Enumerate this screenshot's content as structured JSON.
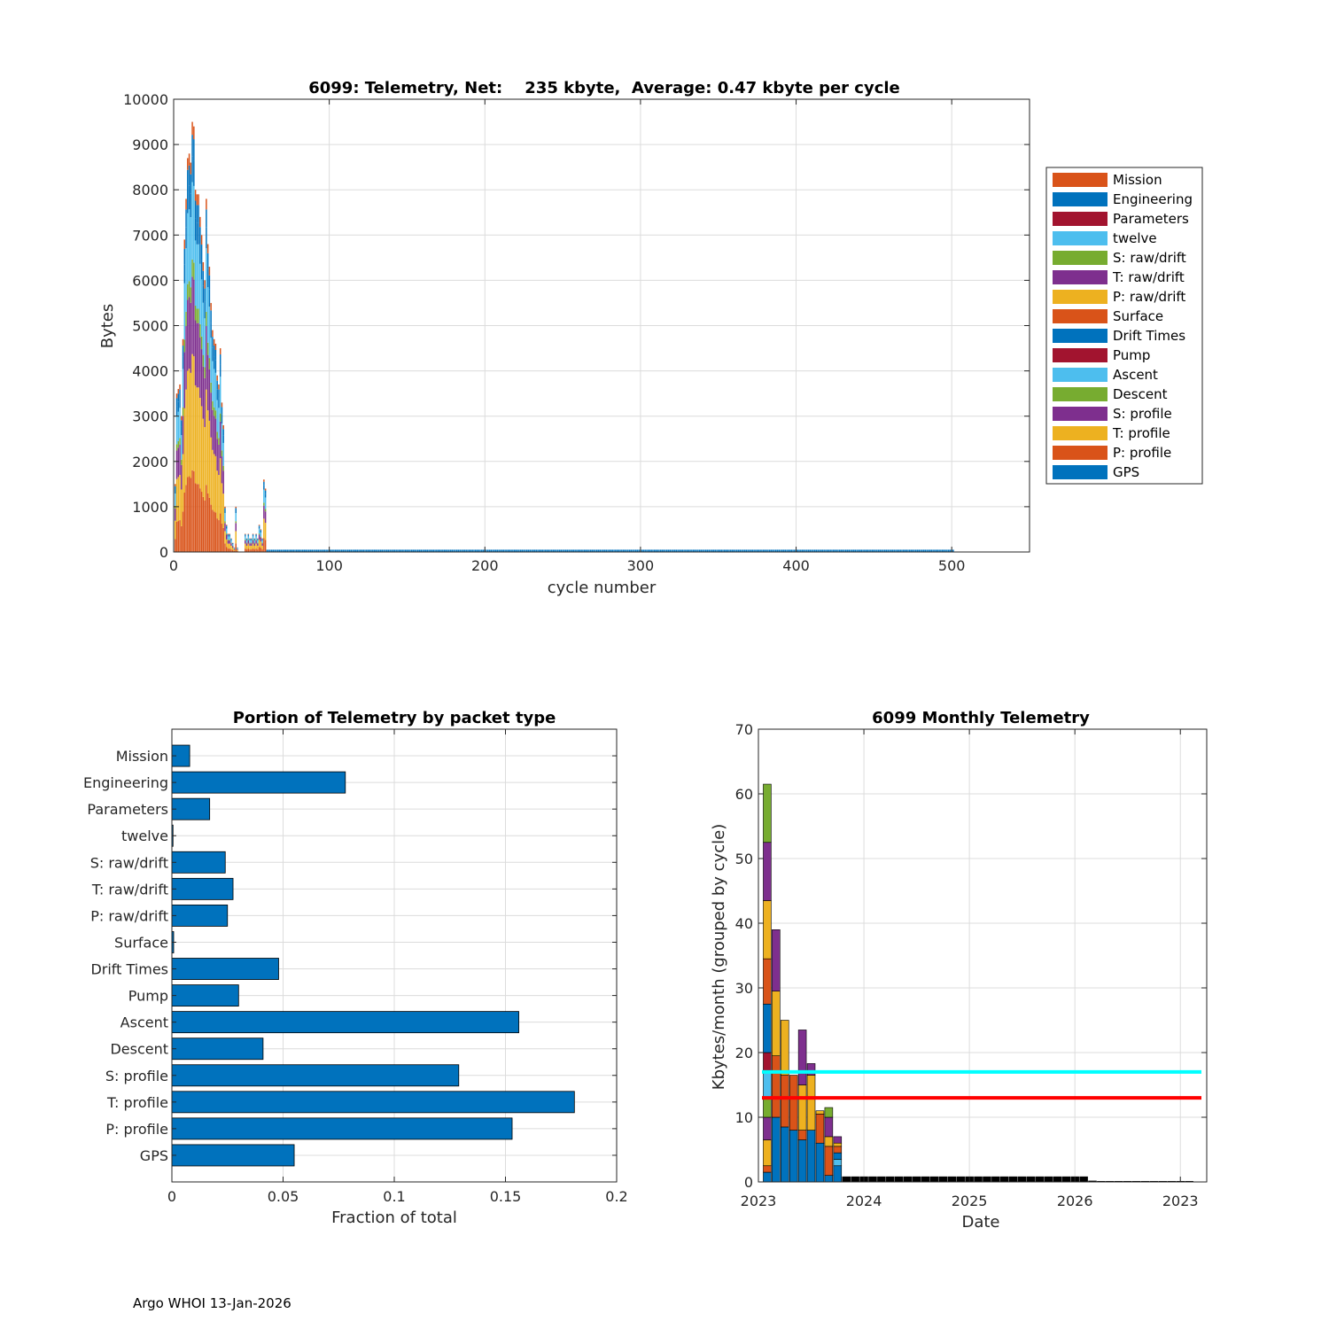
{
  "colors": {
    "Mission": "#D95319",
    "Engineering": "#0072BD",
    "Parameters": "#A2142F",
    "twelve": "#4DBEEE",
    "S: raw/drift": "#77AC30",
    "T: raw/drift": "#7E2F8E",
    "P: raw/drift": "#EDB120",
    "Surface": "#D95319",
    "Drift Times": "#0072BD",
    "Pump": "#A2142F",
    "Ascent": "#4DBEEE",
    "Descent": "#77AC30",
    "S: profile": "#7E2F8E",
    "T: profile": "#EDB120",
    "P: profile": "#D95319",
    "GPS": "#0072BD",
    "avg_line": "#00FFFF",
    "median_line": "#FF0000",
    "bar_blue": "#0072BD",
    "inactive": "#000000"
  },
  "footer": "Argo WHOI 13-Jan-2026",
  "chart_data": [
    {
      "id": "telemetry-per-cycle",
      "type": "bar",
      "stacked": true,
      "title": "6099: Telemetry, Net:    235 kbyte,  Average: 0.47 kbyte per cycle",
      "xlabel": "cycle number",
      "ylabel": "Bytes",
      "xlim": [
        0,
        550
      ],
      "ylim": [
        0,
        10000
      ],
      "xticks": [
        0,
        100,
        200,
        300,
        400,
        500
      ],
      "yticks": [
        0,
        1000,
        2000,
        3000,
        4000,
        5000,
        6000,
        7000,
        8000,
        9000,
        10000
      ],
      "grid": true,
      "legend_position": "outside-right",
      "legend": [
        "Mission",
        "Engineering",
        "Parameters",
        "twelve",
        "S: raw/drift",
        "T: raw/drift",
        "P: raw/drift",
        "Surface",
        "Drift Times",
        "Pump",
        "Ascent",
        "Descent",
        "S: profile",
        "T: profile",
        "P: profile",
        "GPS"
      ],
      "stack_order": [
        "P: profile",
        "T: profile",
        "S: profile",
        "Descent",
        "Ascent",
        "GPS",
        "Engineering",
        "Mission"
      ],
      "cycles": [
        1,
        2,
        3,
        4,
        5,
        6,
        7,
        8,
        9,
        10,
        11,
        12,
        13,
        14,
        15,
        16,
        17,
        18,
        19,
        20,
        21,
        22,
        23,
        24,
        25,
        26,
        27,
        28,
        29,
        30,
        31,
        32,
        33,
        34,
        35,
        36,
        37,
        38,
        39,
        40,
        41,
        42,
        43,
        44,
        45,
        46,
        47,
        48,
        49,
        50,
        51,
        52,
        53,
        54,
        55,
        56,
        57,
        58,
        59
      ],
      "totals": [
        1500,
        3500,
        3600,
        3700,
        3000,
        4700,
        6900,
        7800,
        8700,
        8800,
        8600,
        9500,
        9400,
        8000,
        7900,
        7900,
        7400,
        7000,
        6400,
        6000,
        7800,
        6800,
        6300,
        5500,
        4900,
        4700,
        4600,
        3900,
        3700,
        4500,
        3300,
        2800,
        1000,
        600,
        400,
        400,
        300,
        200,
        100,
        1000,
        100,
        0,
        0,
        0,
        0,
        400,
        300,
        400,
        300,
        300,
        400,
        300,
        400,
        300,
        600,
        500,
        300,
        1600,
        1400
      ],
      "inactive_cycles_range": [
        60,
        501
      ],
      "inactive_value": 50
    },
    {
      "id": "portion-by-packet-type",
      "type": "bar",
      "orientation": "horizontal",
      "title": "Portion of Telemetry by packet type",
      "xlabel": "Fraction of total",
      "ylabel": "",
      "xlim": [
        0,
        0.2
      ],
      "xticks": [
        0,
        0.05,
        0.1,
        0.15,
        0.2
      ],
      "xtick_labels": [
        "0",
        "0.05",
        "0.1",
        "0.15",
        "0.2"
      ],
      "grid": true,
      "categories": [
        "Mission",
        "Engineering",
        "Parameters",
        "twelve",
        "S: raw/drift",
        "T: raw/drift",
        "P: raw/drift",
        "Surface",
        "Drift Times",
        "Pump",
        "Ascent",
        "Descent",
        "S: profile",
        "T: profile",
        "P: profile",
        "GPS"
      ],
      "values": [
        0.008,
        0.078,
        0.017,
        0.0005,
        0.024,
        0.0275,
        0.025,
        0.0008,
        0.048,
        0.03,
        0.156,
        0.041,
        0.129,
        0.181,
        0.153,
        0.055
      ]
    },
    {
      "id": "monthly-telemetry",
      "type": "bar",
      "stacked": true,
      "title": "6099 Monthly Telemetry",
      "xlabel": "Date",
      "ylabel": "Kbytes/month (grouped by cycle)",
      "ylim": [
        0,
        70
      ],
      "yticks": [
        0,
        10,
        20,
        30,
        40,
        50,
        60,
        70
      ],
      "xtick_labels": [
        "2023",
        "2024",
        "2025",
        "2026",
        "2023"
      ],
      "grid": true,
      "average_line": 17,
      "median_line": 13,
      "months": [
        {
          "segments": [
            [
              "GPS",
              1.5
            ],
            [
              "P: profile",
              1
            ],
            [
              "T: profile",
              4
            ],
            [
              "S: profile",
              3.5
            ],
            [
              "Descent",
              3
            ],
            [
              "Ascent",
              4
            ],
            [
              "Pump",
              3
            ],
            [
              "Drift Times",
              7.5
            ],
            [
              "Surface",
              7
            ],
            [
              "P: raw/drift",
              9
            ],
            [
              "T: raw/drift",
              9
            ],
            [
              "S: raw/drift",
              9
            ]
          ]
        },
        {
          "segments": [
            [
              "GPS",
              10
            ],
            [
              "P: profile",
              9.5
            ],
            [
              "T: profile",
              10
            ],
            [
              "S: profile",
              9.5
            ]
          ]
        },
        {
          "segments": [
            [
              "GPS",
              8.5
            ],
            [
              "P: profile",
              8
            ],
            [
              "T: profile",
              8.5
            ]
          ]
        },
        {
          "segments": [
            [
              "GPS",
              8
            ],
            [
              "P: profile",
              8.5
            ]
          ]
        },
        {
          "segments": [
            [
              "GPS",
              6.5
            ],
            [
              "P: profile",
              1.5
            ],
            [
              "T: profile",
              7
            ],
            [
              "S: profile",
              8.5
            ]
          ]
        },
        {
          "segments": [
            [
              "GPS",
              8
            ],
            [
              "T: profile",
              8.5
            ],
            [
              "S: profile",
              1.8
            ]
          ]
        },
        {
          "segments": [
            [
              "GPS",
              6
            ],
            [
              "P: profile",
              4.5
            ],
            [
              "T: profile",
              0.5
            ]
          ]
        },
        {
          "segments": [
            [
              "GPS",
              1
            ],
            [
              "P: profile",
              4.5
            ],
            [
              "T: profile",
              1.5
            ],
            [
              "S: profile",
              3
            ],
            [
              "Descent",
              1.5
            ]
          ]
        },
        {
          "segments": [
            [
              "GPS",
              2.5
            ],
            [
              "Ascent",
              1
            ],
            [
              "Drift Times",
              1
            ],
            [
              "P: profile",
              1
            ],
            [
              "T: profile",
              0.5
            ],
            [
              "S: profile",
              1
            ]
          ]
        },
        {
          "segments": [
            [
              "inactive",
              0.8
            ]
          ]
        },
        {
          "segments": [
            [
              "inactive",
              0.8
            ]
          ]
        },
        {
          "segments": [
            [
              "inactive",
              0.8
            ]
          ]
        },
        {
          "segments": [
            [
              "inactive",
              0.8
            ]
          ]
        },
        {
          "segments": [
            [
              "inactive",
              0.8
            ]
          ]
        },
        {
          "segments": [
            [
              "inactive",
              0.8
            ]
          ]
        },
        {
          "segments": [
            [
              "inactive",
              0.8
            ]
          ]
        },
        {
          "segments": [
            [
              "inactive",
              0.8
            ]
          ]
        },
        {
          "segments": [
            [
              "inactive",
              0.8
            ]
          ]
        },
        {
          "segments": [
            [
              "inactive",
              0.8
            ]
          ]
        },
        {
          "segments": [
            [
              "inactive",
              0.8
            ]
          ]
        },
        {
          "segments": [
            [
              "inactive",
              0.8
            ]
          ]
        },
        {
          "segments": [
            [
              "inactive",
              0.8
            ]
          ]
        },
        {
          "segments": [
            [
              "inactive",
              0.8
            ]
          ]
        },
        {
          "segments": [
            [
              "inactive",
              0.8
            ]
          ]
        },
        {
          "segments": [
            [
              "inactive",
              0.8
            ]
          ]
        },
        {
          "segments": [
            [
              "inactive",
              0.8
            ]
          ]
        },
        {
          "segments": [
            [
              "inactive",
              0.8
            ]
          ]
        },
        {
          "segments": [
            [
              "inactive",
              0.8
            ]
          ]
        },
        {
          "segments": [
            [
              "inactive",
              0.8
            ]
          ]
        },
        {
          "segments": [
            [
              "inactive",
              0.8
            ]
          ]
        },
        {
          "segments": [
            [
              "inactive",
              0.8
            ]
          ]
        },
        {
          "segments": [
            [
              "inactive",
              0.8
            ]
          ]
        },
        {
          "segments": [
            [
              "inactive",
              0.8
            ]
          ]
        },
        {
          "segments": [
            [
              "inactive",
              0.8
            ]
          ]
        },
        {
          "segments": [
            [
              "inactive",
              0.8
            ]
          ]
        },
        {
          "segments": [
            [
              "inactive",
              0.8
            ]
          ]
        },
        {
          "segments": [
            [
              "inactive",
              0.8
            ]
          ]
        },
        {
          "segments": [
            [
              "inactive",
              0.15
            ]
          ]
        },
        {
          "segments": [
            [
              "inactive",
              0.1
            ]
          ]
        },
        {
          "segments": [
            [
              "inactive",
              0.1
            ]
          ]
        },
        {
          "segments": [
            [
              "inactive",
              0.1
            ]
          ]
        },
        {
          "segments": [
            [
              "inactive",
              0.1
            ]
          ]
        },
        {
          "segments": [
            [
              "inactive",
              0.1
            ]
          ]
        },
        {
          "segments": [
            [
              "inactive",
              0.1
            ]
          ]
        },
        {
          "segments": [
            [
              "inactive",
              0.1
            ]
          ]
        },
        {
          "segments": [
            [
              "inactive",
              0.1
            ]
          ]
        },
        {
          "segments": [
            [
              "inactive",
              0.1
            ]
          ]
        },
        {
          "segments": [
            [
              "inactive",
              0.1
            ]
          ]
        },
        {
          "segments": [
            [
              "inactive",
              0.1
            ]
          ]
        }
      ]
    }
  ]
}
